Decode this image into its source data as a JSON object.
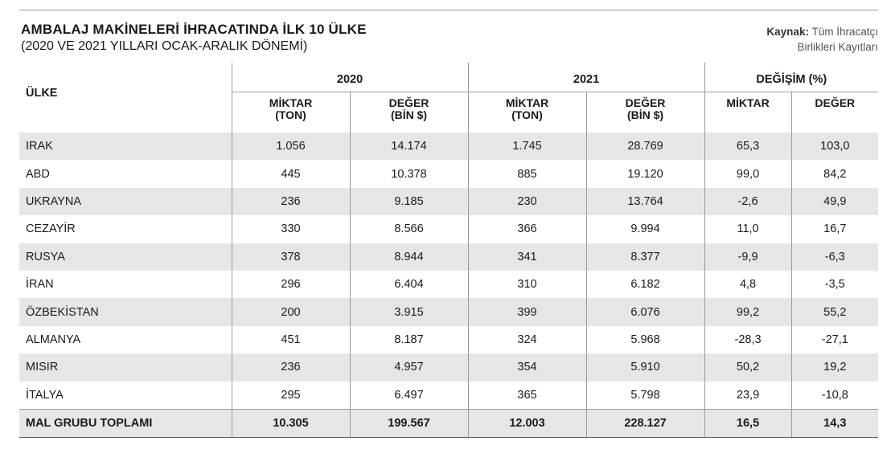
{
  "chart_data": {
    "type": "table",
    "title": "AMBALAJ MAKİNELERİ İHRACATINDA İLK 10 ÜLKE",
    "subtitle": "(2020 VE 2021 YILLARI OCAK-ARALIK DÖNEMİ)",
    "source_label": "Kaynak:",
    "source_text_line1": "Tüm İhracatçı",
    "source_text_line2": "Birlikleri Kayıtları",
    "header": {
      "country": "ÜLKE",
      "year1": "2020",
      "year2": "2021",
      "change": "DEĞİŞİM (%)",
      "qty_l1": "MİKTAR",
      "qty_l2": "(TON)",
      "val_l1": "DEĞER",
      "val_l2": "(BİN $)",
      "chg_qty": "MİKTAR",
      "chg_val": "DEĞER"
    },
    "rows": [
      {
        "country": "IRAK",
        "qty2020": "1.056",
        "val2020": "14.174",
        "qty2021": "1.745",
        "val2021": "28.769",
        "chg_qty": "65,3",
        "chg_val": "103,0"
      },
      {
        "country": "ABD",
        "qty2020": "445",
        "val2020": "10.378",
        "qty2021": "885",
        "val2021": "19.120",
        "chg_qty": "99,0",
        "chg_val": "84,2"
      },
      {
        "country": "UKRAYNA",
        "qty2020": "236",
        "val2020": "9.185",
        "qty2021": "230",
        "val2021": "13.764",
        "chg_qty": "-2,6",
        "chg_val": "49,9"
      },
      {
        "country": "CEZAYİR",
        "qty2020": "330",
        "val2020": "8.566",
        "qty2021": "366",
        "val2021": "9.994",
        "chg_qty": "11,0",
        "chg_val": "16,7"
      },
      {
        "country": "RUSYA",
        "qty2020": "378",
        "val2020": "8.944",
        "qty2021": "341",
        "val2021": "8.377",
        "chg_qty": "-9,9",
        "chg_val": "-6,3"
      },
      {
        "country": "İRAN",
        "qty2020": "296",
        "val2020": "6.404",
        "qty2021": "310",
        "val2021": "6.182",
        "chg_qty": "4,8",
        "chg_val": "-3,5"
      },
      {
        "country": "ÖZBEKİSTAN",
        "qty2020": "200",
        "val2020": "3.915",
        "qty2021": "399",
        "val2021": "6.076",
        "chg_qty": "99,2",
        "chg_val": "55,2"
      },
      {
        "country": "ALMANYA",
        "qty2020": "451",
        "val2020": "8.187",
        "qty2021": "324",
        "val2021": "5.968",
        "chg_qty": "-28,3",
        "chg_val": "-27,1"
      },
      {
        "country": "MISIR",
        "qty2020": "236",
        "val2020": "4.957",
        "qty2021": "354",
        "val2021": "5.910",
        "chg_qty": "50,2",
        "chg_val": "19,2"
      },
      {
        "country": "İTALYA",
        "qty2020": "295",
        "val2020": "6.497",
        "qty2021": "365",
        "val2021": "5.798",
        "chg_qty": "23,9",
        "chg_val": "-10,8"
      }
    ],
    "total": {
      "country": "MAL GRUBU TOPLAMI",
      "qty2020": "10.305",
      "val2020": "199.567",
      "qty2021": "12.003",
      "val2021": "228.127",
      "chg_qty": "16,5",
      "chg_val": "14,3"
    },
    "colors": {
      "band": "#e6e6e6",
      "rule": "#9a9a9a"
    }
  }
}
